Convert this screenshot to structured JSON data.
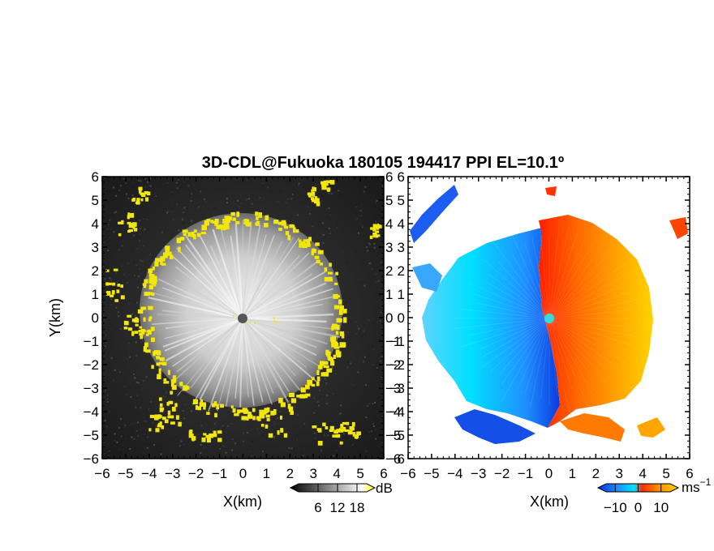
{
  "chart_data": [
    {
      "type": "heatmap",
      "title": "3D-CDL@Fukuoka 180105 194417 PPI EL=10.1º",
      "xlabel": "X(km)",
      "ylabel": "Y(km)",
      "xlim": [
        -6,
        6
      ],
      "ylim": [
        -6,
        6
      ],
      "x_ticks": [
        "−6",
        "−5",
        "−4",
        "−3",
        "−2",
        "−1",
        "0",
        "1",
        "2",
        "3",
        "4",
        "5",
        "6"
      ],
      "y_ticks": [
        "6",
        "5",
        "4",
        "3",
        "2",
        "1",
        "0",
        "−1",
        "−2",
        "−3",
        "−4",
        "−5",
        "−6"
      ],
      "colorbar": {
        "unit": "dB",
        "ticks": [
          "6",
          "12",
          "18"
        ],
        "range": [
          0,
          21
        ],
        "colors": [
          "#000000",
          "#ffffff",
          "#ffff00"
        ]
      },
      "colors": {
        "background": "#202020",
        "clutter": "#f2e60c",
        "center": "#555555"
      }
    },
    {
      "type": "heatmap",
      "xlabel": "X(km)",
      "xlim": [
        -6,
        6
      ],
      "ylim": [
        -6,
        6
      ],
      "x_ticks": [
        "−6",
        "−5",
        "−4",
        "−3",
        "−2",
        "−1",
        "0",
        "1",
        "2",
        "3",
        "4",
        "5",
        "6"
      ],
      "y_ticks": [
        "6",
        "5",
        "4",
        "3",
        "2",
        "1",
        "0",
        "−1",
        "−2",
        "−3",
        "−4",
        "−5",
        "−6"
      ],
      "colorbar": {
        "unit": "ms",
        "unit_exp": "−1",
        "ticks": [
          "−10",
          "0",
          "10"
        ],
        "range": [
          -14,
          14
        ],
        "colors": [
          "#0b2fd8",
          "#1e90ff",
          "#00e5ff",
          "#ff2a00",
          "#ff8c00",
          "#ffd700"
        ]
      },
      "colors": {
        "center": "#33dddd"
      }
    }
  ]
}
